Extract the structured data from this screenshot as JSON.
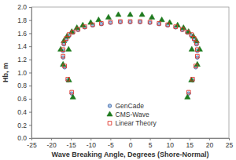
{
  "chart_data": {
    "type": "scatter",
    "x_label": "Wave Breaking Angle, Degrees (Shore-Normal)",
    "y_label": "Hb, m",
    "xlim": [
      -25,
      25
    ],
    "xticks": [
      -25,
      -20,
      -15,
      -10,
      -5,
      0,
      5,
      10,
      15,
      20,
      25
    ],
    "ylim": [
      0,
      2
    ],
    "yticks": [
      {
        "value": 0,
        "label": "0.0"
      },
      {
        "value": 0.2,
        "label": "0.2"
      },
      {
        "value": 0.4,
        "label": "0.4"
      },
      {
        "value": 0.6,
        "label": "0.6"
      },
      {
        "value": 0.8,
        "label": "0.8"
      },
      {
        "value": 1,
        "label": "1.0"
      },
      {
        "value": 1.2,
        "label": "1.2"
      },
      {
        "value": 1.4,
        "label": "1.4"
      },
      {
        "value": 1.6,
        "label": "1.6"
      },
      {
        "value": 1.8,
        "label": "1.8"
      },
      {
        "value": 2,
        "label": "2.0"
      }
    ],
    "grid": false,
    "legend": "bottom",
    "series": [
      {
        "name": "GenCade",
        "color": "#4f6fa8",
        "marker": "circle",
        "x": [
          -14.8,
          -15.8,
          -16.6,
          -17.0,
          -17.0,
          -16.8,
          -16.2,
          -15.5,
          -14.5,
          -13.2,
          -11.5,
          -9.5,
          -7.3,
          -5.0,
          -2.5,
          0,
          2.5,
          5.0,
          7.3,
          9.5,
          11.5,
          13.2,
          14.5,
          15.5,
          16.2,
          16.8,
          17.0,
          17.0,
          16.6,
          15.8,
          14.8
        ],
        "values": [
          0.68,
          0.88,
          1.08,
          1.23,
          1.33,
          1.43,
          1.5,
          1.56,
          1.61,
          1.65,
          1.69,
          1.72,
          1.74,
          1.76,
          1.77,
          1.77,
          1.77,
          1.76,
          1.74,
          1.72,
          1.69,
          1.65,
          1.61,
          1.56,
          1.5,
          1.43,
          1.33,
          1.23,
          1.08,
          0.88,
          0.68
        ]
      },
      {
        "name": "CMS-Wave",
        "color": "#1f7a1f",
        "marker": "triangle",
        "x": [
          -14.5,
          -15.5,
          -17.0,
          -17.6,
          -15.6,
          -16.8,
          -16.0,
          -14.8,
          -13.5,
          -12.0,
          -10.0,
          -8.0,
          -5.5,
          -3.0,
          0,
          3.0,
          5.5,
          8.0,
          10.0,
          12.0,
          13.5,
          14.8,
          16.0,
          16.8,
          15.6,
          17.6,
          17.0,
          15.5,
          14.5
        ],
        "values": [
          0.62,
          0.88,
          1.12,
          1.35,
          1.35,
          1.48,
          1.55,
          1.62,
          1.68,
          1.72,
          1.76,
          1.8,
          1.84,
          1.88,
          1.88,
          1.88,
          1.84,
          1.8,
          1.76,
          1.72,
          1.68,
          1.62,
          1.55,
          1.48,
          1.35,
          1.35,
          1.12,
          0.88,
          0.62
        ]
      },
      {
        "name": "Linear Theory",
        "color": "#e0382c",
        "marker": "square",
        "x": [
          -14.8,
          -15.8,
          -16.6,
          -17.0,
          -17.0,
          -16.8,
          -16.2,
          -15.5,
          -14.5,
          -13.2,
          -11.5,
          -9.5,
          -7.3,
          -5.0,
          -2.5,
          0,
          2.5,
          5.0,
          7.3,
          9.5,
          11.5,
          13.2,
          14.5,
          15.5,
          16.2,
          16.8,
          17.0,
          17.0,
          16.6,
          15.8,
          14.8
        ],
        "values": [
          0.7,
          0.9,
          1.1,
          1.25,
          1.35,
          1.45,
          1.52,
          1.58,
          1.62,
          1.66,
          1.7,
          1.73,
          1.75,
          1.77,
          1.78,
          1.78,
          1.78,
          1.77,
          1.75,
          1.73,
          1.7,
          1.66,
          1.62,
          1.58,
          1.52,
          1.45,
          1.35,
          1.25,
          1.1,
          0.9,
          0.7
        ]
      }
    ]
  }
}
